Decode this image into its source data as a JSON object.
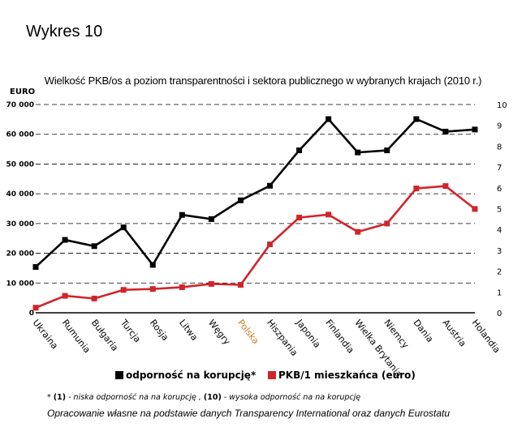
{
  "figure_label": "Wykres 10",
  "chart_data": {
    "type": "line",
    "title": "Wielkość PKB/os a poziom transparentności i sektora publicznego w wybranych krajach (2010 r.)",
    "ylabel_left": "EURO",
    "categories": [
      "Ukraina",
      "Rumunia",
      "Bułgaria",
      "Turcja",
      "Rosja",
      "Litwa",
      "Węgry",
      "Polska",
      "Hiszpania",
      "Japonia",
      "Finlandia",
      "Wielka Brytania",
      "Niemcy",
      "Dania",
      "Austria",
      "Holandia"
    ],
    "highlight_category": "Polska",
    "highlight_color": "#d07b1f",
    "left_axis": {
      "ylim": [
        0,
        70000
      ],
      "ticks": [
        "0",
        "10 000",
        "20 000",
        "30 000",
        "40 000",
        "50 000",
        "60 000",
        "70 000"
      ]
    },
    "right_axis": {
      "ylim": [
        0,
        10
      ],
      "ticks": [
        "0",
        "1",
        "2",
        "3",
        "4",
        "5",
        "6",
        "7",
        "8",
        "9",
        "10"
      ]
    },
    "grid": "horizontal-dashed",
    "series": [
      {
        "name": "odporność na korupcję*",
        "axis": "right",
        "color": "#000000",
        "values": [
          2.2,
          3.5,
          3.2,
          4.1,
          2.3,
          4.7,
          4.5,
          5.4,
          6.1,
          7.8,
          9.3,
          7.7,
          7.8,
          9.3,
          8.7,
          8.8
        ]
      },
      {
        "name": "PKB/1 mieszkańca (euro)",
        "axis": "left",
        "color": "#d0252a",
        "values": [
          1700,
          5700,
          4800,
          7700,
          8000,
          8600,
          9700,
          9400,
          23000,
          32000,
          33000,
          27200,
          30000,
          41800,
          42600,
          34900
        ]
      }
    ]
  },
  "footnote": {
    "mark": "*",
    "part1_bold": "(1)",
    "part1_text": " - niska odporność na na korupcję ,",
    "part2_bold": "(10)",
    "part2_text": " - wysoka odporność na na korupcję"
  },
  "source": "Opracowanie własne na podstawie danych Transparency International oraz danych Eurostatu"
}
